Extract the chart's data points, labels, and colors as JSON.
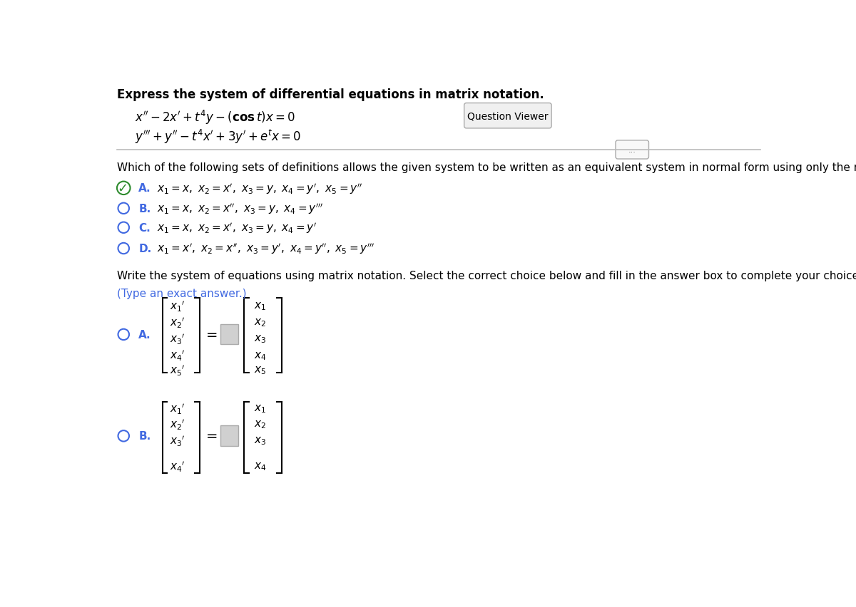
{
  "title_text": "Express the system of differential equations in matrix notation.",
  "question_viewer_text": "Question Viewer",
  "which_text": "Which of the following sets of definitions allows the given system to be written as an equivalent system in normal form using only the new variables?",
  "write_text": "Write the system of equations using matrix notation. Select the correct choice below and fill in the answer box to complete your choice.",
  "type_text": "(Type an exact answer.)",
  "bg_color": "#ffffff",
  "text_color": "#000000",
  "blue_color": "#4169E1",
  "green_color": "#2e8b2e",
  "grey_box_color": "#d0d0d0",
  "separator_color": "#bbbbbb"
}
